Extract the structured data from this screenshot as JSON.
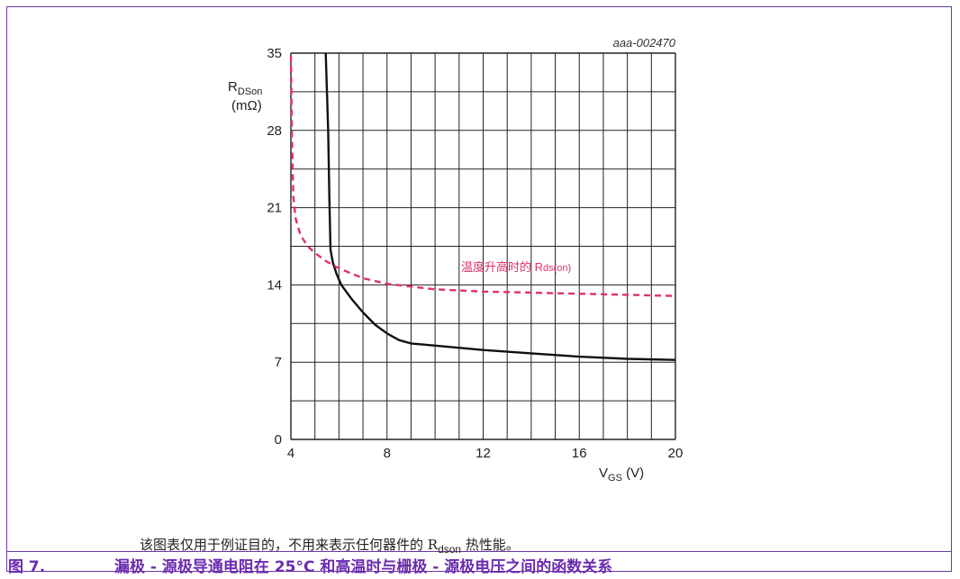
{
  "chart_data": {
    "type": "line",
    "ref_id": "aaa-002470",
    "xlabel": "V_GS (V)",
    "ylabel": "R_DSon (mΩ)",
    "xlim": [
      4,
      20
    ],
    "ylim": [
      0,
      35
    ],
    "xticks": [
      4,
      8,
      12,
      16,
      20
    ],
    "yticks": [
      0,
      7,
      14,
      21,
      28,
      35
    ],
    "grid": true,
    "series": [
      {
        "name": "",
        "color": "#111111",
        "dash": "solid",
        "x": [
          5.45,
          5.55,
          5.6,
          5.65,
          5.75,
          5.9,
          6.1,
          6.5,
          7.0,
          7.5,
          8.0,
          8.5,
          9.0,
          10.0,
          12.0,
          14.0,
          16.0,
          18.0,
          20.0
        ],
        "y": [
          35.0,
          28.0,
          22.0,
          17.2,
          16.0,
          15.0,
          14.0,
          12.8,
          11.5,
          10.4,
          9.6,
          9.0,
          8.7,
          8.5,
          8.1,
          7.8,
          7.5,
          7.3,
          7.2
        ]
      },
      {
        "name": "温度升高时的 Rds(on)",
        "color": "#e0306f",
        "dash": "dashed",
        "x": [
          4.0,
          4.05,
          4.1,
          4.2,
          4.4,
          4.7,
          5.0,
          5.5,
          6.0,
          7.0,
          8.0,
          10.0,
          12.0,
          14.0,
          16.0,
          18.0,
          20.0
        ],
        "y": [
          34.8,
          27.0,
          22.0,
          20.0,
          18.5,
          17.5,
          16.9,
          16.1,
          15.5,
          14.6,
          14.1,
          13.6,
          13.4,
          13.3,
          13.2,
          13.1,
          13.0
        ]
      }
    ]
  },
  "labels": {
    "ref_id": "aaa-002470",
    "y_axis_main": "R",
    "y_axis_sub": "DSon",
    "y_axis_unit": "(mΩ)",
    "x_axis_main": "V",
    "x_axis_sub": "GS",
    "x_axis_unit": " (V)",
    "annotation_main": "温度升高时的 R",
    "annotation_sub": "ds(on)"
  },
  "note": {
    "prefix": "该图表仅用于例证目的，不用来表示任何器件的 R",
    "sub": "dson",
    "suffix": " 热性能。"
  },
  "figure": {
    "number": "图 7.",
    "title": "漏极 - 源极导通电阻在 25°C 和高温时与栅极 - 源极电压之间的函数关系"
  },
  "colors": {
    "frame": "#6b3aa0",
    "caption": "#6b2bb0",
    "curve_25c": "#111111",
    "curve_hot": "#e0306f"
  }
}
